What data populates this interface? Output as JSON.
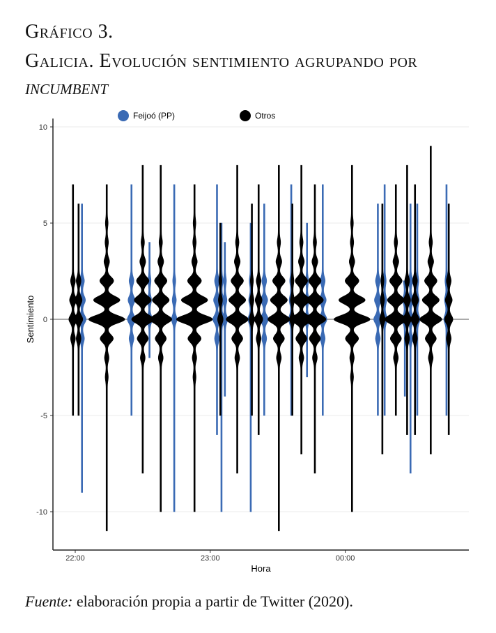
{
  "title": {
    "line1": "Gráfico 3.",
    "line2": "Galicia. Evolución sentimiento agrupando por",
    "line3": "INCUMBENT"
  },
  "source": {
    "label": "Fuente:",
    "text": " elaboración propia a partir de Twitter (2020)."
  },
  "chart_data": {
    "type": "violin",
    "xlabel": "Hora",
    "ylabel": "Sentimiento",
    "ylim": [
      -12,
      10
    ],
    "yticks": [
      10,
      5,
      0,
      -5,
      -10
    ],
    "xlim_minutes_from_2200": [
      -10,
      175
    ],
    "xticks": [
      {
        "minute": 0,
        "label": "22:00"
      },
      {
        "minute": 60,
        "label": "23:00"
      },
      {
        "minute": 120,
        "label": "00:00"
      }
    ],
    "grid": true,
    "hline": 0,
    "legend": {
      "position": "top",
      "entries": [
        {
          "name": "Feijoó (PP)",
          "color": "#3a6ab4"
        },
        {
          "name": "Otros",
          "color": "#000000"
        }
      ]
    },
    "series": [
      {
        "name": "Feijoó (PP)",
        "color": "#3a6ab4",
        "violins": [
          {
            "minute": 3,
            "min": -9,
            "max": 6,
            "size": "small"
          },
          {
            "minute": 25,
            "min": -5,
            "max": 7,
            "size": "small"
          },
          {
            "minute": 33,
            "min": -2,
            "max": 4,
            "size": "tiny"
          },
          {
            "minute": 44,
            "min": -10,
            "max": 7,
            "size": "tiny"
          },
          {
            "minute": 63,
            "min": -6,
            "max": 7,
            "size": "small"
          },
          {
            "minute": 65,
            "min": -10,
            "max": 5,
            "size": "tiny"
          },
          {
            "minute": 66.5,
            "min": -4,
            "max": 4,
            "size": "tiny"
          },
          {
            "minute": 78,
            "min": -10,
            "max": 5,
            "size": "tiny"
          },
          {
            "minute": 84,
            "min": -5,
            "max": 6,
            "size": "small"
          },
          {
            "minute": 96,
            "min": -5,
            "max": 7,
            "size": "tiny"
          },
          {
            "minute": 103,
            "min": -3,
            "max": 5,
            "size": "tiny"
          },
          {
            "minute": 110,
            "min": -5,
            "max": 7,
            "size": "small"
          },
          {
            "minute": 134.5,
            "min": -5,
            "max": 6,
            "size": "small"
          },
          {
            "minute": 137.5,
            "min": -5,
            "max": 7,
            "size": "tiny"
          },
          {
            "minute": 146.5,
            "min": -4,
            "max": 2,
            "size": "tiny"
          },
          {
            "minute": 149,
            "min": -8,
            "max": 6,
            "size": "small"
          },
          {
            "minute": 152,
            "min": -5,
            "max": 6,
            "size": "tiny"
          },
          {
            "minute": 165,
            "min": -5,
            "max": 7,
            "size": "tiny"
          }
        ]
      },
      {
        "name": "Otros",
        "color": "#000000",
        "violins": [
          {
            "minute": -1,
            "min": -5,
            "max": 7,
            "size": "small"
          },
          {
            "minute": 1.5,
            "min": -5,
            "max": 6,
            "size": "small"
          },
          {
            "minute": 14,
            "min": -11,
            "max": 7,
            "size": "big"
          },
          {
            "minute": 30,
            "min": -8,
            "max": 8,
            "size": "medium"
          },
          {
            "minute": 38,
            "min": -10,
            "max": 8,
            "size": "medium"
          },
          {
            "minute": 53,
            "min": -10,
            "max": 7,
            "size": "big"
          },
          {
            "minute": 64.5,
            "min": -5,
            "max": 5,
            "size": "tiny"
          },
          {
            "minute": 72,
            "min": -8,
            "max": 8,
            "size": "medium"
          },
          {
            "minute": 78.5,
            "min": -5,
            "max": 6,
            "size": "tiny"
          },
          {
            "minute": 81.5,
            "min": -6,
            "max": 7,
            "size": "small"
          },
          {
            "minute": 90.5,
            "min": -11,
            "max": 8,
            "size": "medium"
          },
          {
            "minute": 96.5,
            "min": -5,
            "max": 6,
            "size": "tiny"
          },
          {
            "minute": 100.5,
            "min": -7,
            "max": 8,
            "size": "medium"
          },
          {
            "minute": 106.5,
            "min": -8,
            "max": 7,
            "size": "medium"
          },
          {
            "minute": 123,
            "min": -10,
            "max": 8,
            "size": "big"
          },
          {
            "minute": 136.5,
            "min": -7,
            "max": 6,
            "size": "tiny"
          },
          {
            "minute": 142.5,
            "min": -5,
            "max": 7,
            "size": "medium"
          },
          {
            "minute": 147.5,
            "min": -6,
            "max": 8,
            "size": "small"
          },
          {
            "minute": 151,
            "min": -6,
            "max": 7,
            "size": "small"
          },
          {
            "minute": 158,
            "min": -7,
            "max": 9,
            "size": "medium"
          },
          {
            "minute": 166,
            "min": -6,
            "max": 6,
            "size": "small"
          }
        ]
      }
    ]
  }
}
